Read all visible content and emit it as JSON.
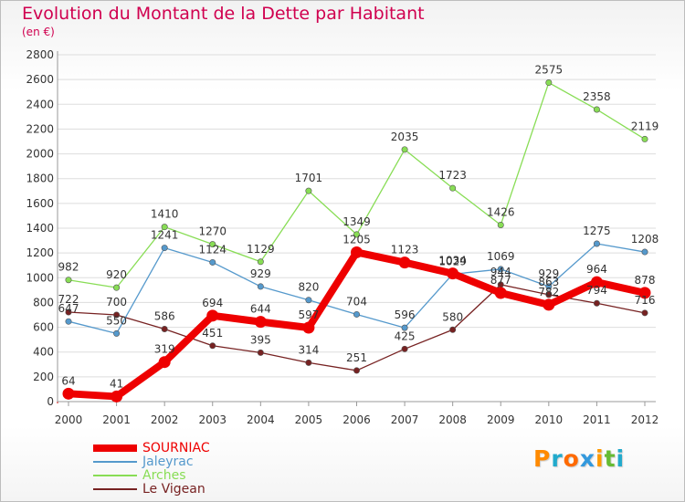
{
  "chart_data": {
    "type": "line",
    "title": "Evolution du Montant de la Dette par Habitant",
    "subtitle": "(en €)",
    "x": [
      "2000",
      "2001",
      "2002",
      "2003",
      "2004",
      "2005",
      "2006",
      "2007",
      "2008",
      "2009",
      "2010",
      "2011",
      "2012"
    ],
    "y_ticks": [
      0,
      200,
      400,
      600,
      800,
      1000,
      1200,
      1400,
      1600,
      1800,
      2000,
      2200,
      2400,
      2600,
      2800
    ],
    "ylim": [
      0,
      2800
    ],
    "grid": "horizontal",
    "legend_position": "bottom-left",
    "series": [
      {
        "name": "SOURNIAC",
        "color": "#ee0000",
        "values": [
          64,
          41,
          319,
          694,
          644,
          597,
          1205,
          1123,
          1034,
          877,
          782,
          964,
          878
        ]
      },
      {
        "name": "Jaleyrac",
        "color": "#5599cc",
        "values": [
          647,
          550,
          1241,
          1124,
          929,
          820,
          704,
          596,
          1029,
          1069,
          929,
          1275,
          1208
        ]
      },
      {
        "name": "Arches",
        "color": "#88dd55",
        "values": [
          982,
          920,
          1410,
          1270,
          1129,
          1701,
          1349,
          2035,
          1723,
          1426,
          2575,
          2358,
          2119
        ]
      },
      {
        "name": "Le Vigean",
        "color": "#772222",
        "values": [
          722,
          700,
          586,
          451,
          395,
          314,
          251,
          425,
          580,
          944,
          863,
          794,
          716
        ]
      }
    ]
  },
  "logo": {
    "letters": [
      "P",
      "r",
      "o",
      "x",
      "i",
      "t",
      "i"
    ],
    "colors": [
      "#ff8a00",
      "#22aacc",
      "#ff6a00",
      "#3399dd",
      "#ff9900",
      "#66bb33",
      "#22aacc"
    ]
  }
}
